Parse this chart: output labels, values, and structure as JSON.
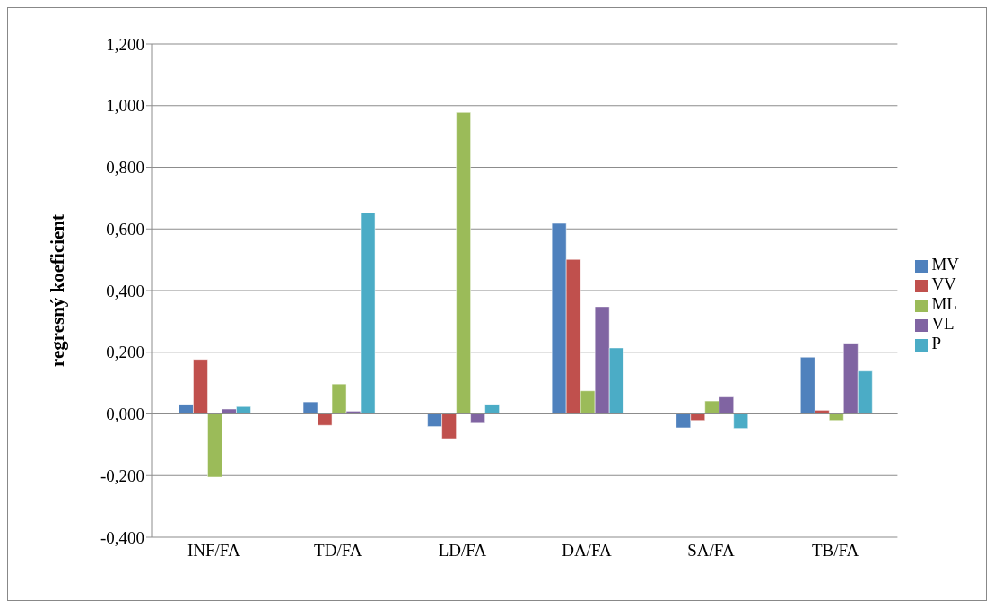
{
  "chart_data": {
    "type": "bar",
    "ylabel": "regresný koeficient",
    "categories": [
      "INF/FA",
      "TD/FA",
      "LD/FA",
      "DA/FA",
      "SA/FA",
      "TB/FA"
    ],
    "series": [
      {
        "name": "MV",
        "color": "#4f81bd",
        "values": [
          0.031,
          0.039,
          -0.041,
          0.618,
          -0.045,
          0.184
        ]
      },
      {
        "name": "VV",
        "color": "#c0504d",
        "values": [
          0.177,
          -0.037,
          -0.08,
          0.501,
          -0.021,
          0.012
        ]
      },
      {
        "name": "ML",
        "color": "#9bbb59",
        "values": [
          -0.205,
          0.097,
          0.978,
          0.075,
          0.042,
          -0.021
        ]
      },
      {
        "name": "VL",
        "color": "#8064a2",
        "values": [
          0.016,
          0.009,
          -0.03,
          0.348,
          0.055,
          0.229
        ]
      },
      {
        "name": "P",
        "color": "#4bacc6",
        "values": [
          0.024,
          0.652,
          0.031,
          0.214,
          -0.047,
          0.139
        ]
      }
    ],
    "ylim": [
      -0.4,
      1.2
    ],
    "yticks": [
      {
        "value": -0.4,
        "label": "-0,400"
      },
      {
        "value": -0.2,
        "label": "-0,200"
      },
      {
        "value": 0,
        "label": "0,000"
      },
      {
        "value": 0.2,
        "label": "0,200"
      },
      {
        "value": 0.4,
        "label": "0,400"
      },
      {
        "value": 0.6,
        "label": "0,600"
      },
      {
        "value": 0.8,
        "label": "0,800"
      },
      {
        "value": 1,
        "label": "1,000"
      },
      {
        "value": 1.2,
        "label": "1,200"
      }
    ],
    "grid": "y",
    "legend": "right"
  }
}
